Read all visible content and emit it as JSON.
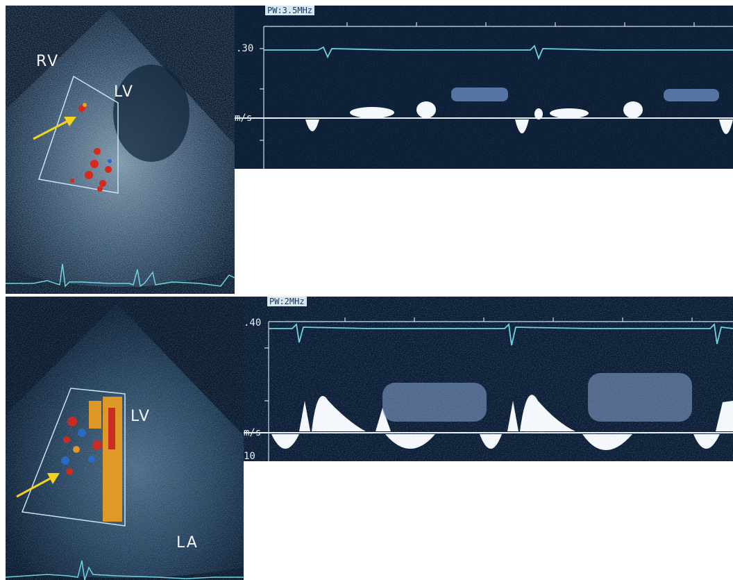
{
  "top": {
    "echo_labels": {
      "rv": "RV",
      "lv": "LV"
    },
    "doppler": {
      "header": "PW:3.5MHz",
      "scale_value": ".30",
      "unit": "m/s"
    }
  },
  "bottom": {
    "echo_labels": {
      "lv": "LV",
      "la": "LA"
    },
    "doppler": {
      "header": "PW:2MHz",
      "scale_value": ".40",
      "unit": "m/s",
      "scale_low": "10"
    }
  },
  "colors": {
    "background": "#0a1a2c",
    "ecg_trace": "#6fd3e0",
    "arrow": "#f2d21b",
    "flow_red": "#d8281a",
    "flow_orange": "#f0a020",
    "flow_blue": "#2a6cd0"
  }
}
